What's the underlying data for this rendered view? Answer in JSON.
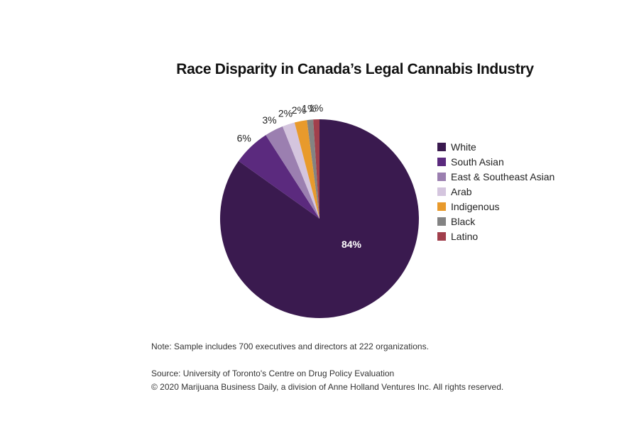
{
  "chart_data": {
    "type": "pie",
    "title": "Race Disparity in Canada’s Legal Cannabis Industry",
    "categories": [
      "White",
      "South Asian",
      "East & Southeast Asian",
      "Arab",
      "Indigenous",
      "Black",
      "Latino"
    ],
    "values": [
      84,
      6,
      3,
      2,
      2,
      1,
      1
    ],
    "labels": [
      "84%",
      "6%",
      "3%",
      "2%",
      "2%",
      "1%",
      "1%"
    ],
    "colors": [
      "#3a1a4f",
      "#5b2a7e",
      "#9b7fb0",
      "#d4c5de",
      "#e89a2c",
      "#838383",
      "#a13f4c"
    ],
    "legend_position": "right"
  },
  "footer": {
    "note": "Note: Sample includes 700 executives and directors at 222 organizations.",
    "source": "Source: University of Toronto's Centre on Drug Policy Evaluation",
    "copyright": "© 2020 Marijuana Business Daily, a division of Anne Holland Ventures Inc. All rights reserved."
  }
}
